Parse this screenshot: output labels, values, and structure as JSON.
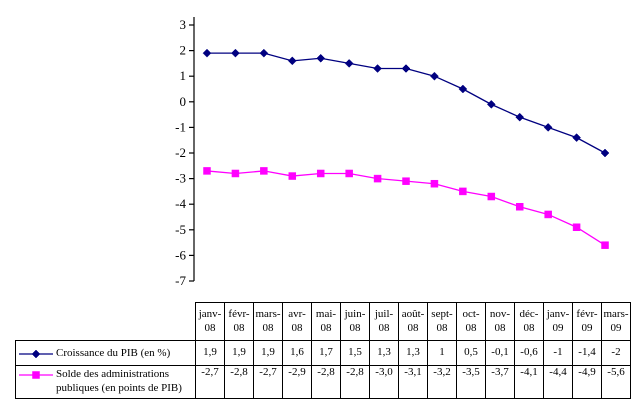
{
  "chart_data": {
    "type": "line",
    "title": "",
    "xlabel": "",
    "ylabel": "",
    "categories": [
      "janv-08",
      "févr-08",
      "mars-08",
      "avr-08",
      "mai-08",
      "juin-08",
      "juil-08",
      "août-08",
      "sept-08",
      "oct-08",
      "nov-08",
      "déc-08",
      "janv-09",
      "févr-09",
      "mars-09"
    ],
    "series": [
      {
        "name": "Croissance du PIB (en %)",
        "color": "#000080",
        "marker": "diamond",
        "values": [
          1.9,
          1.9,
          1.9,
          1.6,
          1.7,
          1.5,
          1.3,
          1.3,
          1,
          0.5,
          -0.1,
          -0.6,
          -1,
          -1.4,
          -2
        ]
      },
      {
        "name": "Solde des administrations publiques (en points de PIB)",
        "color": "#FF00FF",
        "marker": "square",
        "values": [
          -2.7,
          -2.8,
          -2.7,
          -2.9,
          -2.8,
          -2.8,
          -3.0,
          -3.1,
          -3.2,
          -3.5,
          -3.7,
          -4.1,
          -4.4,
          -4.9,
          -5.6
        ]
      }
    ],
    "ylim": [
      -7,
      3
    ],
    "ytick_labels": [
      "3",
      "2",
      "1",
      "0",
      "-1",
      "-2",
      "-3",
      "-4",
      "-5",
      "-6",
      "-7"
    ],
    "grid": false,
    "x_axis_line": false,
    "legend_position": "table-left"
  },
  "table": {
    "column_headers": [
      [
        "janv-",
        "08"
      ],
      [
        "févr-",
        "08"
      ],
      [
        "mars-",
        "08"
      ],
      [
        "avr-",
        "08"
      ],
      [
        "mai-",
        "08"
      ],
      [
        "juin-",
        "08"
      ],
      [
        "juil-",
        "08"
      ],
      [
        "août-",
        "08"
      ],
      [
        "sept-",
        "08"
      ],
      [
        "oct-",
        "08"
      ],
      [
        "nov-",
        "08"
      ],
      [
        "déc-",
        "08"
      ],
      [
        "janv-",
        "09"
      ],
      [
        "févr-",
        "09"
      ],
      [
        "mars-",
        "09"
      ]
    ],
    "rows": [
      {
        "label": "Croissance du PIB (en %)",
        "values": [
          "1,9",
          "1,9",
          "1,9",
          "1,6",
          "1,7",
          "1,5",
          "1,3",
          "1,3",
          "1",
          "0,5",
          "-0,1",
          "-0,6",
          "-1",
          "-1,4",
          "-2"
        ]
      },
      {
        "label": "Solde des administrations publiques (en points de PIB)",
        "values": [
          "-2,7",
          "-2,8",
          "-2,7",
          "-2,9",
          "-2,8",
          "-2,8",
          "-3,0",
          "-3,1",
          "-3,2",
          "-3,5",
          "-3,7",
          "-4,1",
          "-4,4",
          "-4,9",
          "-5,6"
        ]
      }
    ]
  }
}
